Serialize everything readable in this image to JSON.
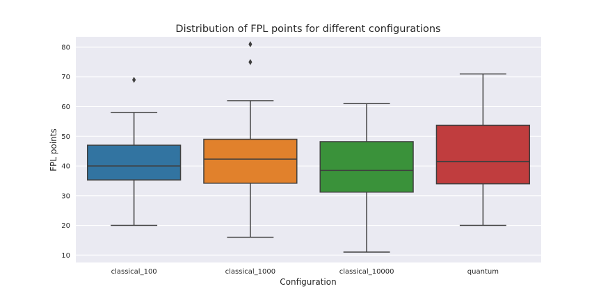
{
  "chart_data": {
    "type": "box",
    "title": "Distribution of FPL points for different configurations",
    "xlabel": "Configuration",
    "ylabel": "FPL points",
    "ylim": [
      7.5,
      83.5
    ],
    "yticks": [
      10,
      20,
      30,
      40,
      50,
      60,
      70,
      80
    ],
    "grid": true,
    "background": "#eaeaf2",
    "categories": [
      "classical_100",
      "classical_1000",
      "classical_10000",
      "quantum"
    ],
    "boxes": [
      {
        "category": "classical_100",
        "color": "#3274a1",
        "whisker_low": 20,
        "q1": 35.3,
        "median": 40.0,
        "q3": 47.0,
        "whisker_high": 58,
        "outliers": [
          69
        ]
      },
      {
        "category": "classical_1000",
        "color": "#e1812c",
        "whisker_low": 16,
        "q1": 34.2,
        "median": 42.3,
        "q3": 49.0,
        "whisker_high": 62,
        "outliers": [
          75,
          81
        ]
      },
      {
        "category": "classical_10000",
        "color": "#3a923a",
        "whisker_low": 11,
        "q1": 31.2,
        "median": 38.5,
        "q3": 48.2,
        "whisker_high": 61,
        "outliers": []
      },
      {
        "category": "quantum",
        "color": "#c03d3e",
        "whisker_low": 20,
        "q1": 34.0,
        "median": 41.5,
        "q3": 53.7,
        "whisker_high": 71,
        "outliers": []
      }
    ]
  }
}
